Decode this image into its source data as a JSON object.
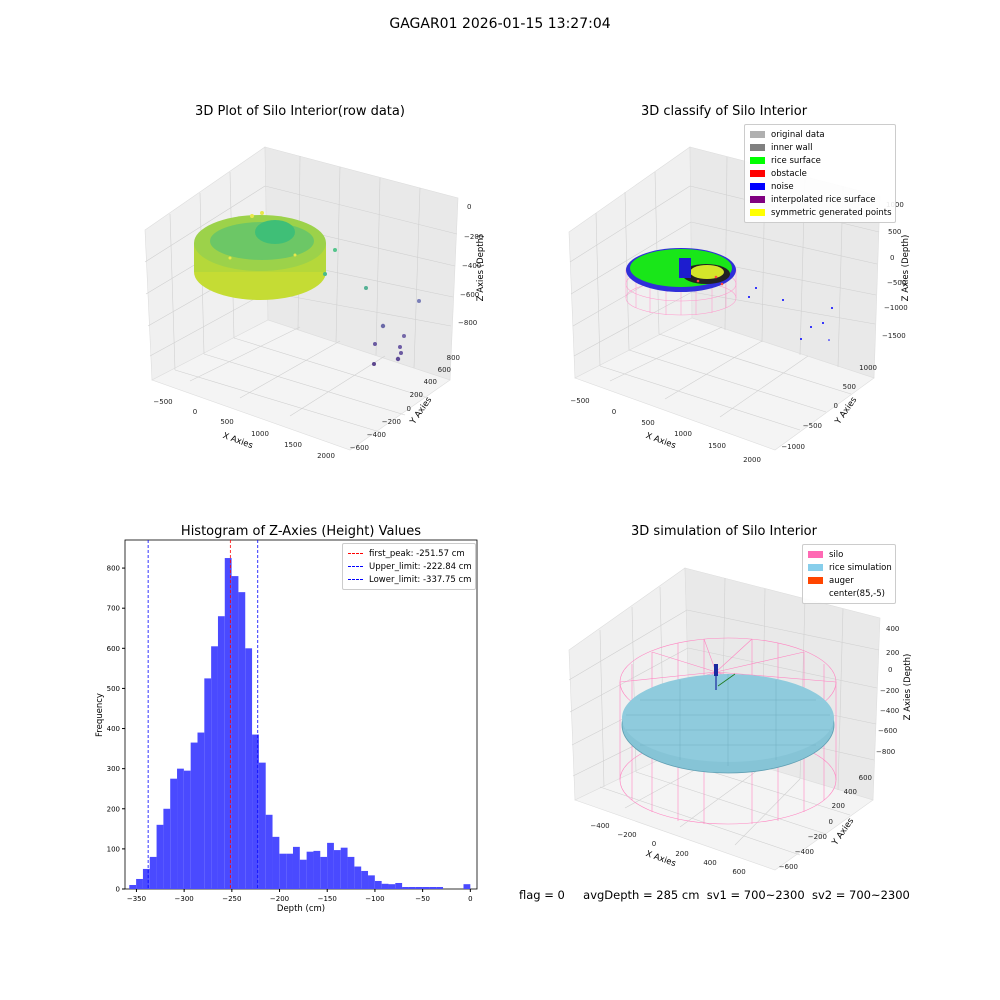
{
  "suptitle": "GAGAR01 2026-01-15 13:27:04",
  "panels": {
    "tl": {
      "title": "3D Plot of Silo Interior(row data)",
      "xlabel": "X Axies",
      "ylabel": "Y Axies",
      "zlabel": "Z Axies (Depth)",
      "xticks": [
        "−500",
        "0",
        "500",
        "1000",
        "1500",
        "2000"
      ],
      "yticks": [
        "−600",
        "−400",
        "−200",
        "0",
        "200",
        "400",
        "600",
        "800"
      ],
      "zticks": [
        "0",
        "−200",
        "−400",
        "−600",
        "−800"
      ]
    },
    "tr": {
      "title": "3D classify of Silo Interior",
      "xlabel": "X Axies",
      "ylabel": "Y Axies",
      "zlabel": "Z Axies (Depth)",
      "xticks": [
        "−500",
        "0",
        "500",
        "1000",
        "1500",
        "2000"
      ],
      "yticks": [
        "−1000",
        "−500",
        "0",
        "500",
        "1000"
      ],
      "zticks": [
        "1000",
        "500",
        "0",
        "−500",
        "−1000",
        "−1500"
      ],
      "legend": [
        {
          "label": "original data",
          "color": "#b0b0b0"
        },
        {
          "label": "inner wall",
          "color": "#808080"
        },
        {
          "label": "rice surface",
          "color": "#00ff00"
        },
        {
          "label": "obstacle",
          "color": "#ff0000"
        },
        {
          "label": "noise",
          "color": "#0000ff"
        },
        {
          "label": "interpolated rice surface",
          "color": "#800080"
        },
        {
          "label": "symmetric generated points",
          "color": "#ffff00"
        }
      ]
    },
    "br": {
      "title": "3D simulation of Silo Interior",
      "xlabel": "X Axies",
      "ylabel": "Y Axies",
      "zlabel": "Z Axies (Depth)",
      "xticks": [
        "−400",
        "−200",
        "0",
        "200",
        "400",
        "600"
      ],
      "yticks": [
        "−600",
        "−400",
        "−200",
        "0",
        "200",
        "400",
        "600"
      ],
      "zticks": [
        "400",
        "200",
        "0",
        "−200",
        "−400",
        "−600",
        "−800"
      ],
      "legend": [
        {
          "label": "silo",
          "color": "#ff69b4"
        },
        {
          "label": "rice simulation",
          "color": "#87ceeb"
        },
        {
          "label": "auger",
          "color": "#ff4500"
        },
        {
          "label": "center(85,-5)",
          "color": ""
        }
      ]
    }
  },
  "chart_data": {
    "type": "bar",
    "title": "Histogram of Z-Axies (Height) Values",
    "xlabel": "Depth (cm)",
    "ylabel": "Frequency",
    "xlim": [
      -362,
      7
    ],
    "ylim": [
      0,
      870
    ],
    "xticks": [
      -350,
      -300,
      -250,
      -200,
      -150,
      -100,
      -50,
      0
    ],
    "yticks": [
      0,
      100,
      200,
      300,
      400,
      500,
      600,
      700,
      800
    ],
    "bin_width": 7.15,
    "bin_starts": [
      -357.5,
      -350.35,
      -343.2,
      -336.05,
      -328.9,
      -321.75,
      -314.6,
      -307.45,
      -300.3,
      -293.15,
      -286.0,
      -278.85,
      -271.7,
      -264.55,
      -257.4,
      -250.25,
      -243.1,
      -235.95,
      -228.8,
      -221.65,
      -214.5,
      -207.35,
      -200.2,
      -193.05,
      -185.9,
      -178.75,
      -171.6,
      -164.45,
      -157.3,
      -150.15,
      -143.0,
      -135.85,
      -128.7,
      -121.55,
      -114.4,
      -107.25,
      -100.1,
      -92.95,
      -85.8,
      -78.65,
      -71.5,
      -64.35,
      -57.2,
      -50.05,
      -42.9,
      -35.75,
      -28.6,
      -21.45,
      -14.3,
      -7.15
    ],
    "values": [
      10,
      25,
      50,
      80,
      160,
      200,
      275,
      300,
      295,
      365,
      390,
      525,
      605,
      680,
      825,
      780,
      740,
      600,
      385,
      315,
      185,
      130,
      88,
      88,
      105,
      73,
      93,
      95,
      80,
      115,
      97,
      103,
      80,
      56,
      45,
      34,
      20,
      13,
      12,
      15,
      5,
      5,
      5,
      5,
      5,
      5,
      0,
      0,
      0,
      12
    ],
    "lines": [
      {
        "label": "first_peak: -251.57 cm",
        "x": -251.57,
        "color": "#ff0000"
      },
      {
        "label": "Upper_limit: -222.84 cm",
        "x": -222.84,
        "color": "#0000ff"
      },
      {
        "label": "Lower_limit: -337.75 cm",
        "x": -337.75,
        "color": "#0000ff"
      }
    ],
    "bar_color": "#4a4aff"
  },
  "footer": {
    "flag": "flag = 0",
    "avg": "avgDepth = 285 cm",
    "sv1": "sv1 = 700~2300",
    "sv2": "sv2 = 700~2300"
  }
}
